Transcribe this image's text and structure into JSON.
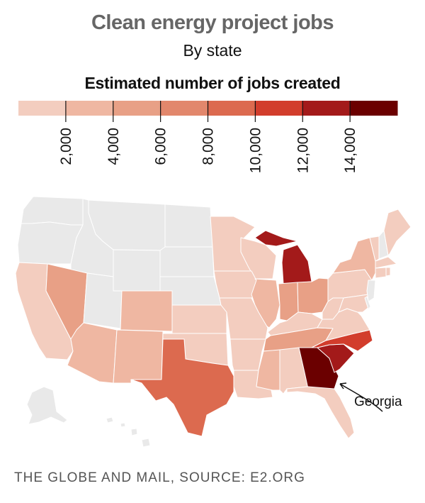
{
  "header": {
    "title": "Clean energy project jobs",
    "subtitle": "By state"
  },
  "legend": {
    "title": "Estimated number of jobs created",
    "ticks": [
      "2,000",
      "4,000",
      "6,000",
      "8,000",
      "10,000",
      "12,000",
      "14,000"
    ],
    "colors": [
      "#f3cdbf",
      "#efb7a2",
      "#e8a086",
      "#e2876c",
      "#dc6a4f",
      "#d23d2c",
      "#a31a1a",
      "#6b0000"
    ],
    "no_data_color": "#e9e9e9"
  },
  "annotation": {
    "label": "Georgia"
  },
  "footer": {
    "source": "THE GLOBE AND MAIL, SOURCE: E2.ORG"
  },
  "chart_data": {
    "type": "choropleth",
    "title": "Clean energy project jobs",
    "subtitle": "By state",
    "legend_title": "Estimated number of jobs created",
    "bins": [
      [
        0,
        2000
      ],
      [
        2000,
        4000
      ],
      [
        4000,
        6000
      ],
      [
        6000,
        8000
      ],
      [
        8000,
        10000
      ],
      [
        10000,
        12000
      ],
      [
        12000,
        14000
      ],
      [
        14000,
        16000
      ]
    ],
    "states": {
      "CA": 0,
      "NV": 2,
      "AZ": 1,
      "NM": 1,
      "CO": 1,
      "TX": 4,
      "KS": 0,
      "OK": 0,
      "MN": 0,
      "IA": 0,
      "MO": 0,
      "AR": 0,
      "LA": 0,
      "WI": 0,
      "IL": 1,
      "IN": 2,
      "OH": 2,
      "MI": 6,
      "KY": 0,
      "TN": 2,
      "MS": 1,
      "AL": 0,
      "GA": 7,
      "SC": 6,
      "NC": 5,
      "FL": 0,
      "VA": 0,
      "WV": 0,
      "PA": 0,
      "NY": 1,
      "MD": 0,
      "VT": 0,
      "ME": 0,
      "MA": 0,
      "CT": 0,
      "RI": 0,
      "WA": null,
      "OR": null,
      "ID": null,
      "MT": null,
      "WY": null,
      "ND": null,
      "SD": null,
      "NE": null,
      "UT": null,
      "NH": null,
      "NJ": null,
      "DE": null,
      "AK": null,
      "HI": null
    }
  }
}
